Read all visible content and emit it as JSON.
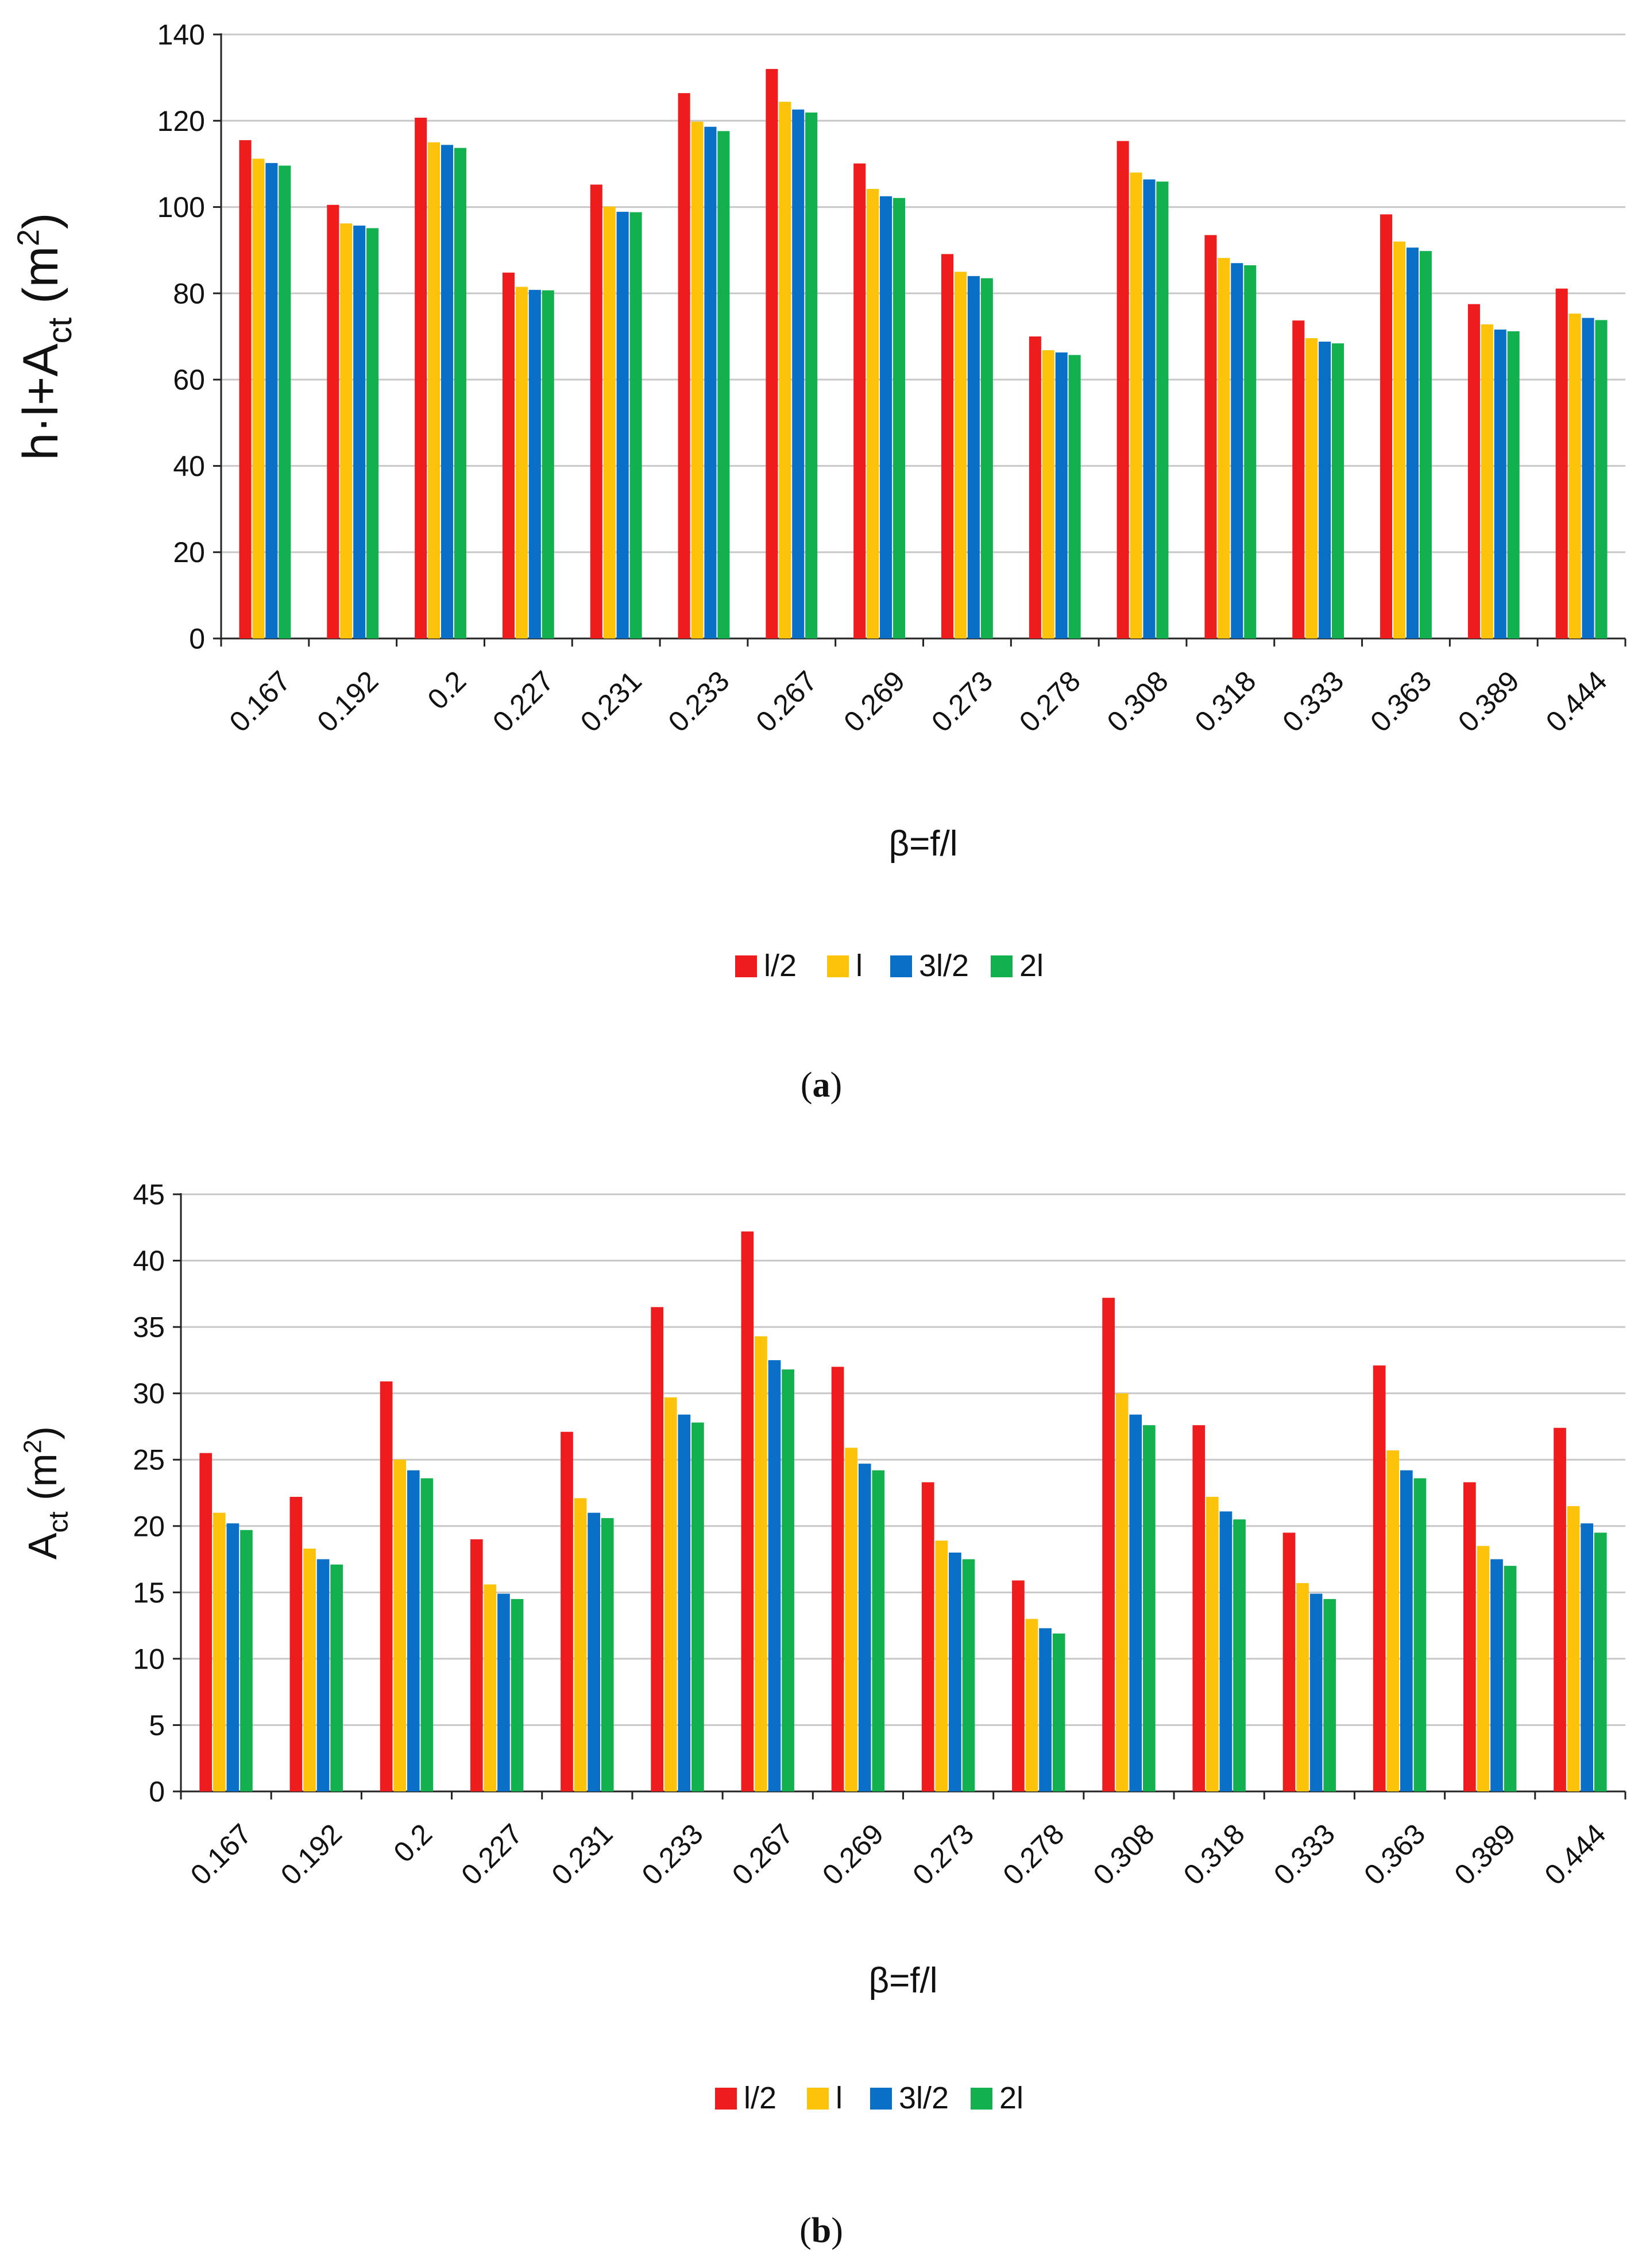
{
  "colors": {
    "l_half": "#ee1c1c",
    "l": "#fdc20a",
    "three_l_half": "#0a6fc7",
    "two_l": "#12b04f",
    "grid": "#c8c8c8",
    "axis": "#222222"
  },
  "chart_data": [
    {
      "type": "bar",
      "caption_letter": "a",
      "title": "",
      "xlabel": "β=f/l",
      "ylabel": {
        "main": "h·l+A",
        "sub": "ct",
        "post": " (m",
        "sup": "2",
        "end": ")"
      },
      "ylim": [
        0,
        140
      ],
      "yticks": [
        0,
        20,
        40,
        60,
        80,
        100,
        120,
        140
      ],
      "grid": true,
      "legend_position": "bottom",
      "categories": [
        "0.167",
        "0.192",
        "0.2",
        "0.227",
        "0.231",
        "0.233",
        "0.267",
        "0.269",
        "0.273",
        "0.278",
        "0.308",
        "0.318",
        "0.333",
        "0.363",
        "0.389",
        "0.444"
      ],
      "series": [
        {
          "name": "l/2",
          "color_key": "l_half",
          "values": [
            115.5,
            100.5,
            120.7,
            84.8,
            105.2,
            126.4,
            132.0,
            110.1,
            89.1,
            70.0,
            115.3,
            93.5,
            73.7,
            98.3,
            77.5,
            81.1
          ]
        },
        {
          "name": "l",
          "color_key": "l",
          "values": [
            111.2,
            96.2,
            115.0,
            81.5,
            100.1,
            119.8,
            124.4,
            104.2,
            85.0,
            66.8,
            108.0,
            88.2,
            69.6,
            92.0,
            72.8,
            75.3
          ]
        },
        {
          "name": "3l/2",
          "color_key": "three_l_half",
          "values": [
            110.2,
            95.7,
            114.4,
            80.8,
            98.9,
            118.6,
            122.6,
            102.5,
            84.0,
            66.3,
            106.4,
            87.0,
            68.8,
            90.6,
            71.6,
            74.3
          ]
        },
        {
          "name": "2l",
          "color_key": "two_l",
          "values": [
            109.6,
            95.1,
            113.7,
            80.7,
            98.8,
            117.6,
            121.9,
            102.1,
            83.5,
            65.7,
            105.9,
            86.5,
            68.4,
            89.8,
            71.2,
            73.8
          ]
        }
      ]
    },
    {
      "type": "bar",
      "caption_letter": "b",
      "title": "",
      "xlabel": "β=f/l",
      "ylabel": {
        "main": "A",
        "sub": "ct",
        "post": " (m",
        "sup": "2",
        "end": ")"
      },
      "ylim": [
        0,
        45
      ],
      "yticks": [
        0,
        5,
        10,
        15,
        20,
        25,
        30,
        35,
        40,
        45
      ],
      "grid": true,
      "legend_position": "bottom",
      "categories": [
        "0.167",
        "0.192",
        "0.2",
        "0.227",
        "0.231",
        "0.233",
        "0.267",
        "0.269",
        "0.273",
        "0.278",
        "0.308",
        "0.318",
        "0.333",
        "0.363",
        "0.389",
        "0.444"
      ],
      "series": [
        {
          "name": "l/2",
          "color_key": "l_half",
          "values": [
            25.5,
            22.2,
            30.9,
            19.0,
            27.1,
            36.5,
            42.2,
            32.0,
            23.3,
            15.9,
            37.2,
            27.6,
            19.5,
            32.1,
            23.3,
            27.4
          ]
        },
        {
          "name": "l",
          "color_key": "l",
          "values": [
            21.0,
            18.3,
            25.0,
            15.6,
            22.1,
            29.7,
            34.3,
            25.9,
            18.9,
            13.0,
            30.0,
            22.2,
            15.7,
            25.7,
            18.5,
            21.5
          ]
        },
        {
          "name": "3l/2",
          "color_key": "three_l_half",
          "values": [
            20.2,
            17.5,
            24.2,
            14.9,
            21.0,
            28.4,
            32.5,
            24.7,
            18.0,
            12.3,
            28.4,
            21.1,
            14.9,
            24.2,
            17.5,
            20.2
          ]
        },
        {
          "name": "2l",
          "color_key": "two_l",
          "values": [
            19.7,
            17.1,
            23.6,
            14.5,
            20.6,
            27.8,
            31.8,
            24.2,
            17.5,
            11.9,
            27.6,
            20.5,
            14.5,
            23.6,
            17.0,
            19.5
          ]
        }
      ]
    }
  ]
}
